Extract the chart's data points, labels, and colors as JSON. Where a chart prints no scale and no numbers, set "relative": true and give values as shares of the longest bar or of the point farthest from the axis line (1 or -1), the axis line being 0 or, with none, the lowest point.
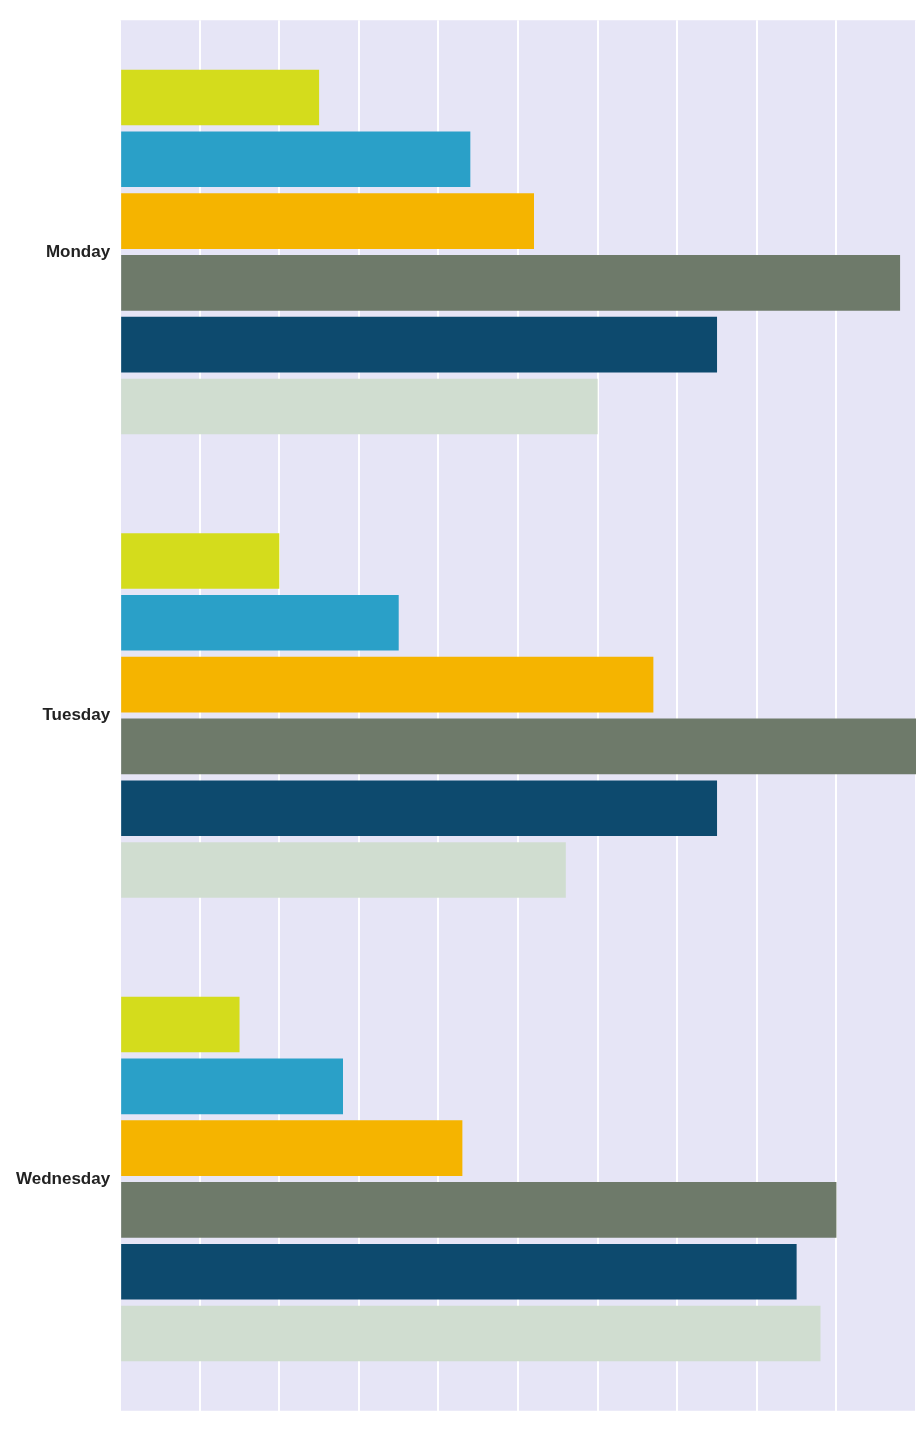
{
  "chart_data": {
    "type": "bar",
    "orientation": "horizontal",
    "relative": true,
    "grid": "x",
    "categories": [
      "Monday",
      "Tuesday",
      "Wednesday"
    ],
    "series": [
      {
        "color": "#d4dc1c",
        "values": [
          0.25,
          0.2,
          0.15
        ]
      },
      {
        "color": "#2aa0c8",
        "values": [
          0.44,
          0.35,
          0.28
        ]
      },
      {
        "color": "#f5b400",
        "values": [
          0.52,
          0.67,
          0.43
        ]
      },
      {
        "color": "#6e7a6a",
        "values": [
          0.98,
          1,
          0.9
        ]
      },
      {
        "color": "#0d4a6e",
        "values": [
          0.75,
          0.75,
          0.85
        ]
      },
      {
        "color": "#d0ddd0",
        "values": [
          0.6,
          0.56,
          0.88
        ]
      }
    ]
  }
}
